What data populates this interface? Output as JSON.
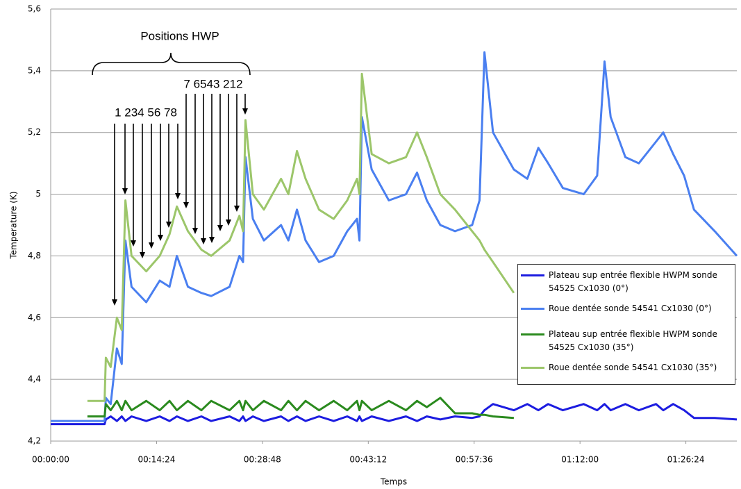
{
  "chart_data": {
    "type": "line",
    "y_label": "Temperature (K)",
    "x_label": "Temps",
    "annotations": [
      "Positions HWP",
      "1 234 56 78",
      "7 6543 212"
    ],
    "grid": true,
    "legend": "right",
    "xlim": [
      0,
      5600
    ],
    "xticks": [
      {
        "value": 0,
        "label": "00:00:00"
      },
      {
        "value": 864,
        "label": "00:14:24"
      },
      {
        "value": 1728,
        "label": "00:28:48"
      },
      {
        "value": 2592,
        "label": "00:43:12"
      },
      {
        "value": 3456,
        "label": "00:57:36"
      },
      {
        "value": 4320,
        "label": "01:12:00"
      },
      {
        "value": 5184,
        "label": "01:26:24"
      }
    ],
    "ylim": [
      4.2,
      5.6
    ],
    "yticks": [
      {
        "value": 4.2,
        "label": "4,2"
      },
      {
        "value": 4.4,
        "label": "4,4"
      },
      {
        "value": 4.6,
        "label": "4,6"
      },
      {
        "value": 4.8,
        "label": "4,8"
      },
      {
        "value": 5.0,
        "label": "5"
      },
      {
        "value": 5.2,
        "label": "5,2"
      },
      {
        "value": 5.4,
        "label": "5,4"
      },
      {
        "value": 5.6,
        "label": "5,6"
      }
    ],
    "x": [
      0,
      300,
      440,
      450,
      490,
      540,
      580,
      610,
      660,
      780,
      890,
      970,
      1030,
      1120,
      1230,
      1310,
      1460,
      1540,
      1570,
      1590,
      1650,
      1740,
      1880,
      1940,
      2010,
      2080,
      2190,
      2310,
      2420,
      2500,
      2520,
      2540,
      2620,
      2760,
      2900,
      2990,
      3070,
      3180,
      3300,
      3440,
      3500,
      3540,
      3610,
      3780,
      3890,
      3980,
      4060,
      4180,
      4350,
      4460,
      4520,
      4570,
      4690,
      4800,
      4940,
      5000,
      5080,
      5170,
      5250,
      5420,
      5600
    ],
    "series": [
      {
        "name": "Plateau sup entrée flexible HWPM sonde 54525 Cx1030 (0°)",
        "color": "#1c1ce0",
        "values": [
          4.255,
          4.255,
          4.255,
          4.27,
          4.28,
          4.265,
          4.28,
          4.265,
          4.28,
          4.265,
          4.28,
          4.265,
          4.28,
          4.265,
          4.28,
          4.265,
          4.28,
          4.265,
          4.28,
          4.265,
          4.28,
          4.265,
          4.28,
          4.265,
          4.28,
          4.265,
          4.28,
          4.265,
          4.28,
          4.265,
          4.28,
          4.265,
          4.28,
          4.265,
          4.28,
          4.265,
          4.28,
          4.27,
          4.28,
          4.275,
          4.28,
          4.3,
          4.32,
          4.3,
          4.32,
          4.3,
          4.32,
          4.3,
          4.32,
          4.3,
          4.32,
          4.3,
          4.32,
          4.3,
          4.32,
          4.3,
          4.32,
          4.3,
          4.275,
          4.275,
          4.27
        ]
      },
      {
        "name": "Roue dentée sonde 54541 Cx1030 (0°)",
        "color": "#4a7ff0",
        "values": [
          4.265,
          4.265,
          4.265,
          4.34,
          4.32,
          4.5,
          4.45,
          4.85,
          4.7,
          4.65,
          4.72,
          4.7,
          4.8,
          4.7,
          4.68,
          4.67,
          4.7,
          4.8,
          4.78,
          5.12,
          4.92,
          4.85,
          4.9,
          4.85,
          4.95,
          4.85,
          4.78,
          4.8,
          4.88,
          4.92,
          4.85,
          5.25,
          5.08,
          4.98,
          5.0,
          5.07,
          4.98,
          4.9,
          4.88,
          4.9,
          4.98,
          5.46,
          5.2,
          5.08,
          5.05,
          5.15,
          5.1,
          5.02,
          5.0,
          5.06,
          5.43,
          5.25,
          5.12,
          5.1,
          5.17,
          5.2,
          5.13,
          5.06,
          4.95,
          4.88,
          4.8
        ]
      },
      {
        "name": "Plateau sup entrée flexible HWPM sonde 54525 Cx1030 (35°)",
        "color": "#2a8a1e",
        "values": [
          null,
          4.28,
          4.28,
          4.32,
          4.3,
          4.33,
          4.3,
          4.33,
          4.3,
          4.33,
          4.3,
          4.33,
          4.3,
          4.33,
          4.3,
          4.33,
          4.3,
          4.33,
          4.3,
          4.33,
          4.3,
          4.33,
          4.3,
          4.33,
          4.3,
          4.33,
          4.3,
          4.33,
          4.3,
          4.33,
          4.3,
          4.33,
          4.3,
          4.33,
          4.3,
          4.33,
          4.31,
          4.34,
          4.29,
          4.29,
          4.285,
          4.285,
          4.28,
          4.275,
          null,
          null,
          null,
          null,
          null,
          null,
          null,
          null,
          null,
          null,
          null,
          null,
          null,
          null,
          null,
          null,
          null
        ]
      },
      {
        "name": "Roue dentée sonde 54541 Cx1030 (35°)",
        "color": "#9cc66a",
        "values": [
          null,
          4.33,
          4.33,
          4.47,
          4.44,
          4.6,
          4.56,
          4.98,
          4.8,
          4.75,
          4.8,
          4.87,
          4.96,
          4.88,
          4.82,
          4.8,
          4.85,
          4.93,
          4.88,
          5.24,
          5.0,
          4.95,
          5.05,
          5.0,
          5.14,
          5.05,
          4.95,
          4.92,
          4.98,
          5.05,
          5.0,
          5.39,
          5.13,
          5.1,
          5.12,
          5.2,
          5.12,
          5.0,
          4.95,
          4.88,
          4.85,
          4.82,
          4.78,
          4.68,
          null,
          null,
          null,
          null,
          null,
          null,
          null,
          null,
          null,
          null,
          null,
          null,
          null,
          null,
          null,
          null,
          null
        ]
      }
    ]
  }
}
